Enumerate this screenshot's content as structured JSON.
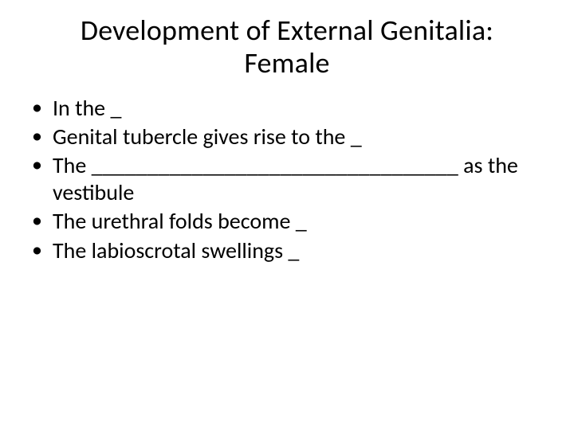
{
  "slide": {
    "title_line1": "Development of External Genitalia:",
    "title_line2": "Female",
    "bullets": [
      "In the _",
      "Genital tubercle gives rise to the _",
      "The _________________________________ as the vestibule",
      "The urethral folds become _",
      "The labioscrotal swellings _"
    ]
  },
  "style": {
    "background_color": "#ffffff",
    "text_color": "#000000",
    "title_fontsize": 36,
    "body_fontsize": 28,
    "font_family": "Calibri"
  }
}
